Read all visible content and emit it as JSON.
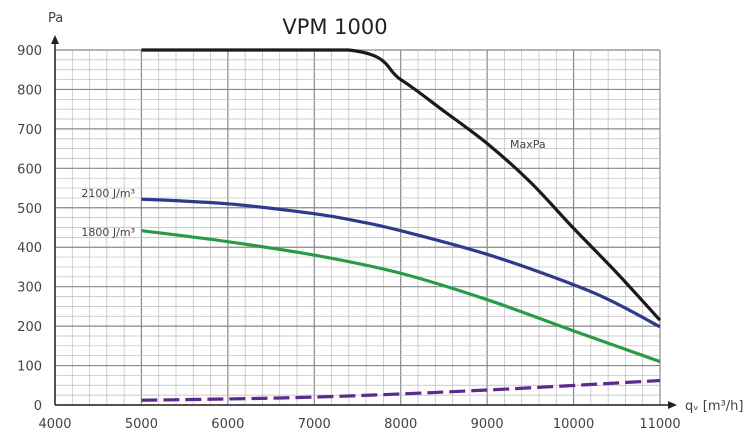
{
  "chart_data": {
    "type": "line",
    "title": "VPM 1000",
    "xlabel": "qᵥ [m³/h]",
    "ylabel": "Pa",
    "xlim": [
      4000,
      11000
    ],
    "ylim": [
      0,
      900
    ],
    "xticks": [
      4000,
      5000,
      6000,
      7000,
      8000,
      9000,
      10000,
      11000
    ],
    "yticks": [
      0,
      100,
      200,
      300,
      400,
      500,
      600,
      700,
      800,
      900
    ],
    "grid": true,
    "series": [
      {
        "name": "MaxPa",
        "color": "#1a1a1a",
        "dashed": false,
        "x": [
          5000,
          7400,
          8000,
          8500,
          9000,
          9500,
          10000,
          10500,
          11000
        ],
        "y": [
          900,
          900,
          825,
          745,
          663,
          565,
          448,
          335,
          215
        ]
      },
      {
        "name": "2100 J/m³",
        "color": "#2e3a8c",
        "dashed": false,
        "x": [
          5000,
          6000,
          7000,
          7500,
          8000,
          9000,
          10000,
          10500,
          11000
        ],
        "y": [
          522,
          510,
          485,
          466,
          442,
          382,
          305,
          257,
          198
        ]
      },
      {
        "name": "1800 J/m³",
        "color": "#2a9a48",
        "dashed": false,
        "x": [
          5000,
          6000,
          7000,
          8000,
          9000,
          10000,
          11000
        ],
        "y": [
          442,
          414,
          380,
          334,
          267,
          188,
          110
        ]
      },
      {
        "name": "",
        "color": "#5b2a8c",
        "dashed": true,
        "x": [
          5000,
          7000,
          9000,
          11000
        ],
        "y": [
          12,
          20,
          38,
          62
        ]
      }
    ]
  }
}
